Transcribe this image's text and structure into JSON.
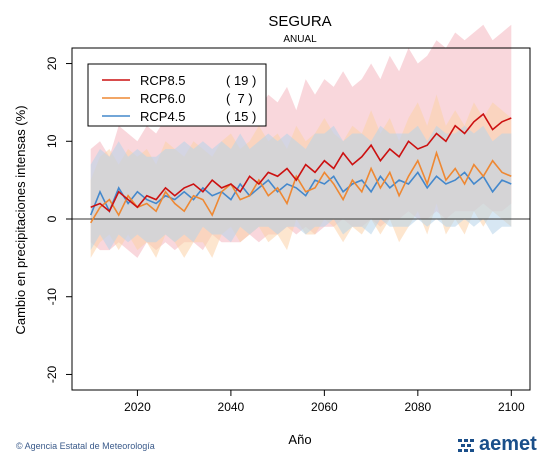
{
  "chart_data": {
    "type": "line",
    "title": "SEGURA",
    "subtitle": "ANUAL",
    "xlabel": "Año",
    "ylabel": "Cambio en precipitaciones intensas (%)",
    "xlim": [
      2006,
      2104
    ],
    "ylim": [
      -22,
      22
    ],
    "xticks": [
      2020,
      2040,
      2060,
      2080,
      2100
    ],
    "yticks": [
      -20,
      -10,
      0,
      10,
      20
    ],
    "legend_position": "top-left",
    "series": [
      {
        "name": "RCP8.5",
        "count": "( 19 )",
        "color": "#cc1111",
        "band_color": "#f4b6c0",
        "x": [
          2010,
          2012,
          2014,
          2016,
          2018,
          2020,
          2022,
          2024,
          2026,
          2028,
          2030,
          2032,
          2034,
          2036,
          2038,
          2040,
          2042,
          2044,
          2046,
          2048,
          2050,
          2052,
          2054,
          2056,
          2058,
          2060,
          2062,
          2064,
          2066,
          2068,
          2070,
          2072,
          2074,
          2076,
          2078,
          2080,
          2082,
          2084,
          2086,
          2088,
          2090,
          2092,
          2094,
          2096,
          2098,
          2100
        ],
        "values": [
          1.5,
          2.0,
          1.0,
          3.5,
          2.5,
          1.5,
          3.0,
          2.5,
          4.0,
          3.0,
          4.0,
          4.5,
          3.5,
          5.0,
          4.0,
          4.5,
          3.5,
          5.5,
          4.5,
          6.0,
          5.5,
          6.5,
          5.0,
          7.0,
          6.0,
          7.5,
          6.5,
          8.5,
          7.0,
          8.0,
          9.5,
          7.5,
          9.0,
          8.0,
          10.0,
          9.0,
          9.5,
          11.0,
          10.0,
          12.0,
          11.0,
          12.5,
          13.5,
          11.5,
          12.5,
          13.0
        ],
        "band_high": [
          9,
          10,
          8,
          12,
          11,
          10,
          12,
          11,
          13,
          12,
          13,
          14,
          12,
          14,
          13,
          14,
          13,
          15,
          14,
          16,
          15,
          17,
          14,
          18,
          16,
          18,
          17,
          19,
          17,
          18,
          20,
          18,
          21,
          19,
          22,
          20,
          21,
          23,
          22,
          24,
          23,
          24,
          25,
          23,
          24,
          25
        ],
        "band_low": [
          -3,
          -4,
          -4,
          -3,
          -4,
          -5,
          -3,
          -4,
          -3,
          -4,
          -3,
          -3,
          -4,
          -2,
          -3,
          -3,
          -3,
          -2,
          -3,
          -2,
          -2,
          -1,
          -2,
          -1,
          -2,
          -1,
          -1,
          0,
          -1,
          -1,
          0,
          -1,
          0,
          0,
          1,
          0,
          0,
          1,
          0,
          1,
          1,
          1,
          2,
          1,
          1,
          2
        ]
      },
      {
        "name": "RCP6.0",
        "count": "(  7 )",
        "color": "#ee8833",
        "band_color": "#fbd2a8",
        "x": [
          2010,
          2012,
          2014,
          2016,
          2018,
          2020,
          2022,
          2024,
          2026,
          2028,
          2030,
          2032,
          2034,
          2036,
          2038,
          2040,
          2042,
          2044,
          2046,
          2048,
          2050,
          2052,
          2054,
          2056,
          2058,
          2060,
          2062,
          2064,
          2066,
          2068,
          2070,
          2072,
          2074,
          2076,
          2078,
          2080,
          2082,
          2084,
          2086,
          2088,
          2090,
          2092,
          2094,
          2096,
          2098,
          2100
        ],
        "values": [
          -0.5,
          1.5,
          2.5,
          0.5,
          3.0,
          1.5,
          2.0,
          1.0,
          3.5,
          2.0,
          1.0,
          3.0,
          2.5,
          0.5,
          3.5,
          4.5,
          2.5,
          3.0,
          5.0,
          3.0,
          4.0,
          2.0,
          5.5,
          3.5,
          4.0,
          6.0,
          4.5,
          2.5,
          5.0,
          3.5,
          6.5,
          4.0,
          6.0,
          3.0,
          5.5,
          7.5,
          4.5,
          8.5,
          5.0,
          6.5,
          4.5,
          7.0,
          5.5,
          7.5,
          6.0,
          5.5
        ],
        "band_high": [
          5,
          8,
          9,
          7,
          9,
          8,
          9,
          7,
          10,
          9,
          8,
          10,
          9,
          8,
          10,
          11,
          9,
          10,
          12,
          10,
          11,
          9,
          12,
          10,
          11,
          13,
          11,
          10,
          12,
          11,
          14,
          11,
          13,
          10,
          13,
          15,
          12,
          16,
          12,
          14,
          12,
          15,
          13,
          15,
          14,
          13
        ],
        "band_low": [
          -5,
          -3,
          -2,
          -4,
          -2,
          -4,
          -3,
          -5,
          -2,
          -3,
          -5,
          -3,
          -3,
          -5,
          -2,
          -1,
          -3,
          -2,
          -1,
          -3,
          -2,
          -4,
          0,
          -2,
          -2,
          0,
          -1,
          -3,
          -1,
          -2,
          0,
          -2,
          0,
          -3,
          -1,
          1,
          -2,
          2,
          -2,
          0,
          -2,
          1,
          -1,
          1,
          0,
          -1
        ]
      },
      {
        "name": "RCP4.5",
        "count": "( 15 )",
        "color": "#4488cc",
        "band_color": "#b6d4ea",
        "x": [
          2010,
          2012,
          2014,
          2016,
          2018,
          2020,
          2022,
          2024,
          2026,
          2028,
          2030,
          2032,
          2034,
          2036,
          2038,
          2040,
          2042,
          2044,
          2046,
          2048,
          2050,
          2052,
          2054,
          2056,
          2058,
          2060,
          2062,
          2064,
          2066,
          2068,
          2070,
          2072,
          2074,
          2076,
          2078,
          2080,
          2082,
          2084,
          2086,
          2088,
          2090,
          2092,
          2094,
          2096,
          2098,
          2100
        ],
        "values": [
          0.5,
          3.5,
          1.0,
          4.0,
          2.0,
          3.5,
          2.5,
          2.0,
          3.0,
          2.5,
          3.5,
          2.5,
          4.0,
          3.0,
          3.5,
          2.5,
          4.5,
          3.0,
          4.0,
          5.0,
          3.5,
          4.5,
          4.0,
          3.0,
          5.0,
          4.5,
          5.5,
          3.5,
          4.5,
          5.0,
          3.5,
          5.5,
          4.0,
          5.0,
          4.5,
          6.0,
          4.0,
          5.5,
          4.5,
          5.0,
          6.0,
          4.5,
          5.5,
          3.5,
          5.0,
          4.5
        ],
        "band_high": [
          7,
          9,
          8,
          10,
          8,
          9,
          8,
          8,
          9,
          9,
          10,
          9,
          10,
          9,
          10,
          9,
          11,
          9,
          10,
          11,
          10,
          11,
          10,
          9,
          11,
          11,
          12,
          10,
          11,
          11,
          10,
          12,
          11,
          11,
          11,
          12,
          10,
          12,
          11,
          11,
          12,
          11,
          12,
          10,
          11,
          11
        ],
        "band_low": [
          -4,
          -2,
          -4,
          -2,
          -3,
          -2,
          -3,
          -3,
          -2,
          -3,
          -2,
          -3,
          -1,
          -2,
          -2,
          -3,
          -1,
          -2,
          -1,
          -1,
          -2,
          -1,
          -1,
          -2,
          -1,
          -1,
          0,
          -2,
          -1,
          -1,
          -2,
          0,
          -1,
          -1,
          -1,
          0,
          -1,
          0,
          -1,
          -1,
          0,
          -1,
          0,
          -2,
          -1,
          -1
        ]
      }
    ]
  },
  "footer": {
    "credit": "© Agencia Estatal de Meteorología",
    "logo_text": "aemet"
  }
}
